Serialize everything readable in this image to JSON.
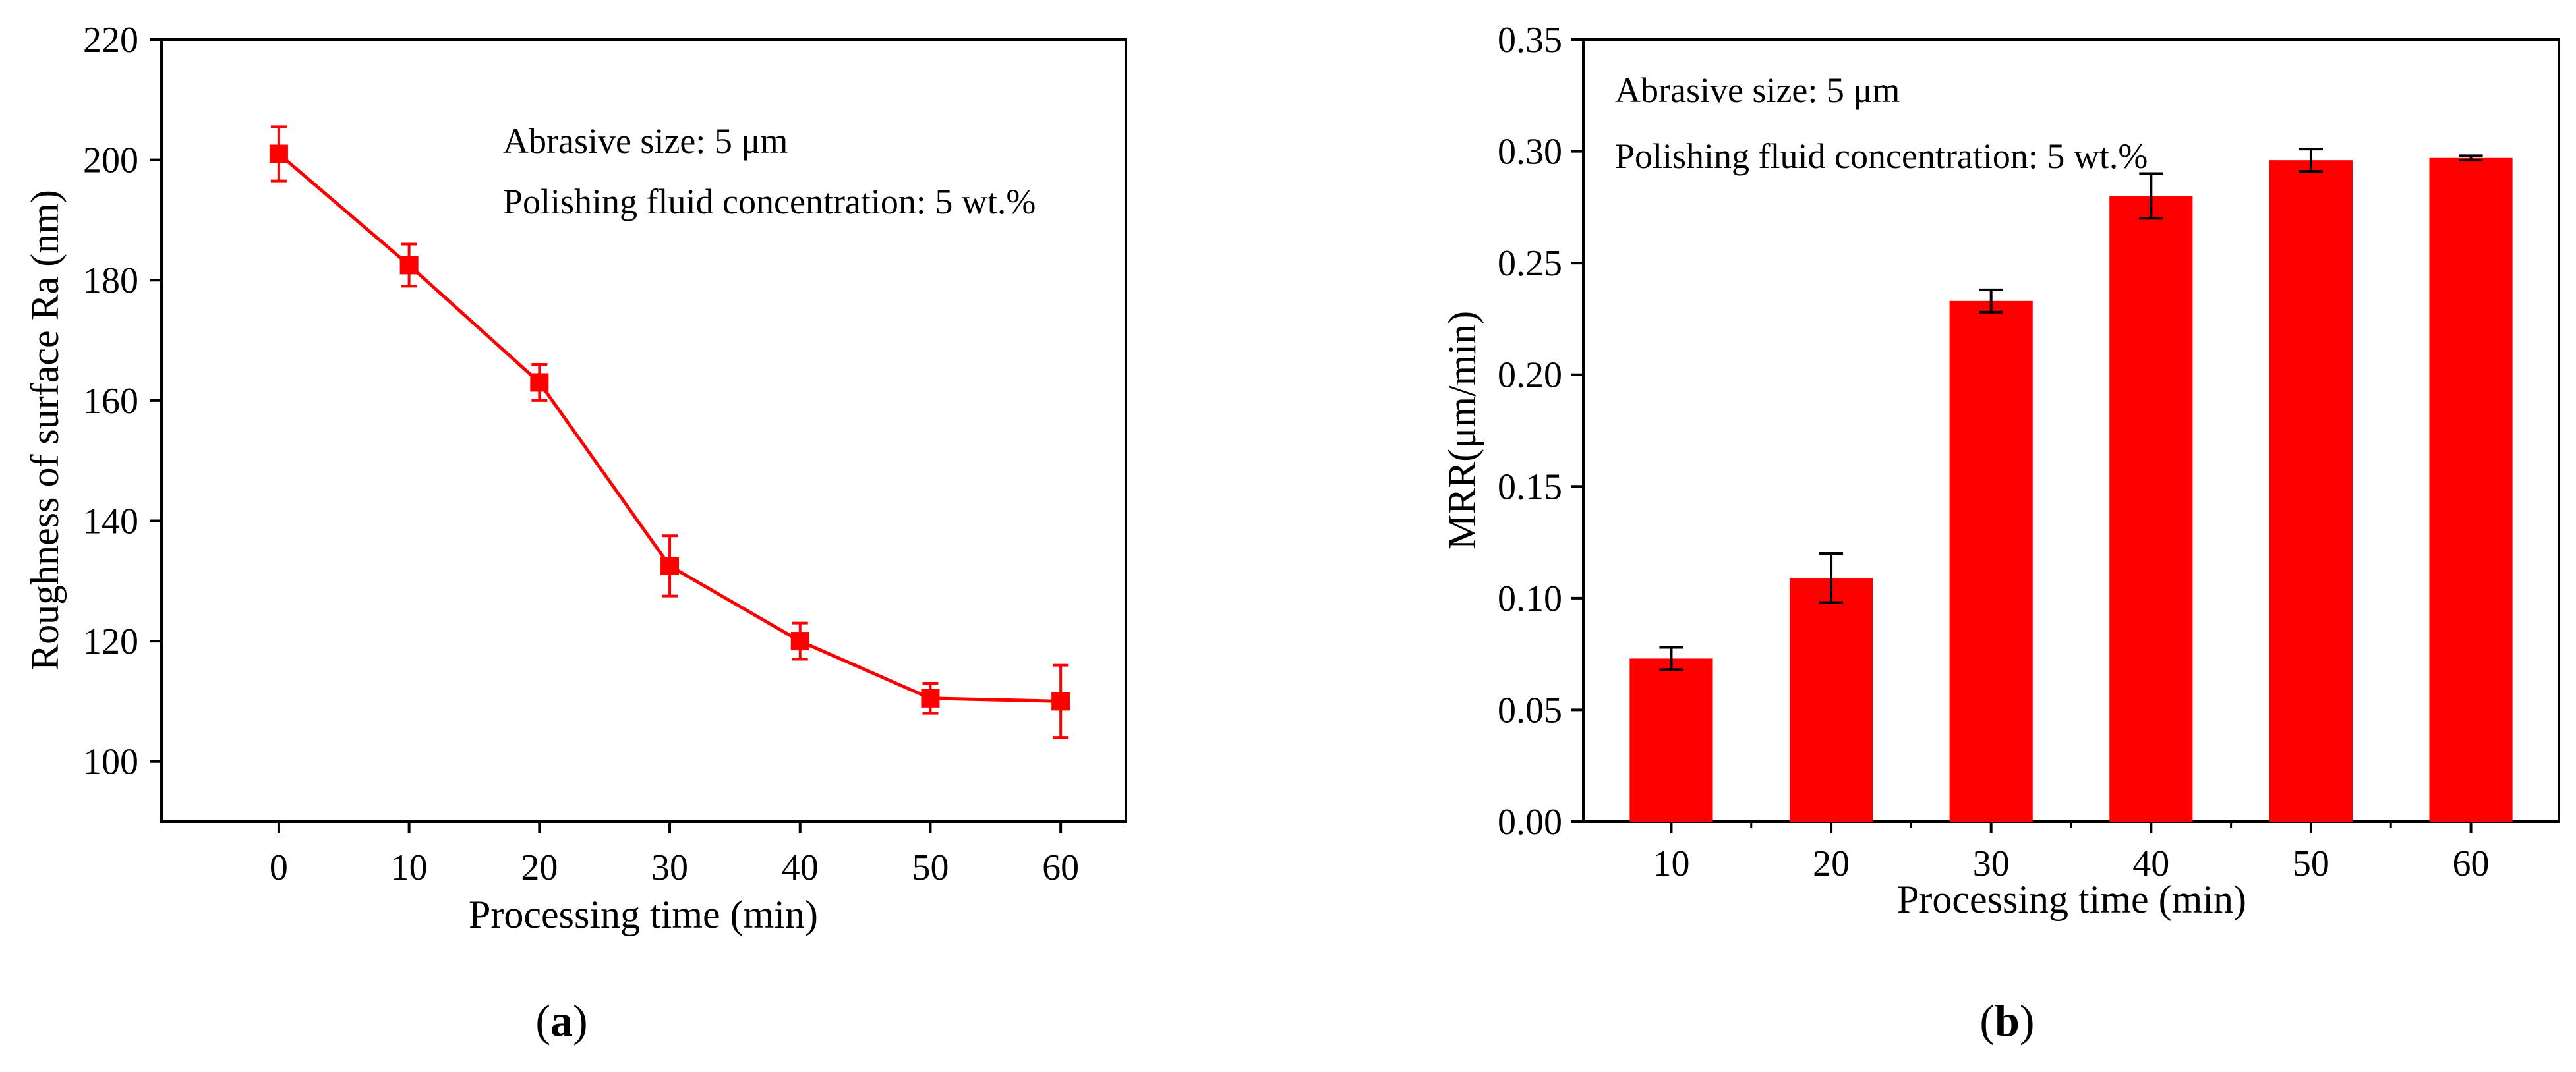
{
  "colors": {
    "series": "#ff0000",
    "axis": "#000000",
    "background": "#ffffff"
  },
  "chart_data": [
    {
      "panel_label": "a",
      "type": "line",
      "title": "",
      "xlabel": "Processing time (min)",
      "ylabel": "Roughness of surface Ra (nm)",
      "x": [
        0,
        10,
        20,
        30,
        40,
        50,
        60
      ],
      "values": [
        201,
        182.5,
        163,
        132.5,
        120,
        110.5,
        110
      ],
      "errors": [
        4.5,
        3.5,
        3,
        5,
        3,
        2.5,
        6
      ],
      "xlim": [
        -9,
        65
      ],
      "ylim": [
        90,
        220
      ],
      "xticks": [
        "0",
        "10",
        "20",
        "30",
        "40",
        "50",
        "60"
      ],
      "yticks": [
        "100",
        "120",
        "140",
        "160",
        "180",
        "200",
        "220"
      ],
      "annotations": [
        "Abrasive size: 5 μm",
        "Polishing fluid concentration: 5 wt.%"
      ],
      "grid": false,
      "marker": "square"
    },
    {
      "panel_label": "b",
      "type": "bar",
      "title": "",
      "xlabel": "Processing time (min)",
      "ylabel": "MRR(μm/min)",
      "categories": [
        "10",
        "20",
        "30",
        "40",
        "50",
        "60"
      ],
      "values": [
        0.073,
        0.109,
        0.233,
        0.28,
        0.296,
        0.297
      ],
      "errors": [
        0.005,
        0.011,
        0.005,
        0.01,
        0.005,
        0.001
      ],
      "ylim": [
        0,
        0.35
      ],
      "yticks": [
        "0.00",
        "0.05",
        "0.10",
        "0.15",
        "0.20",
        "0.25",
        "0.30",
        "0.35"
      ],
      "annotations": [
        "Abrasive size: 5 μm",
        "Polishing fluid concentration: 5 wt.%"
      ],
      "grid": false
    }
  ]
}
